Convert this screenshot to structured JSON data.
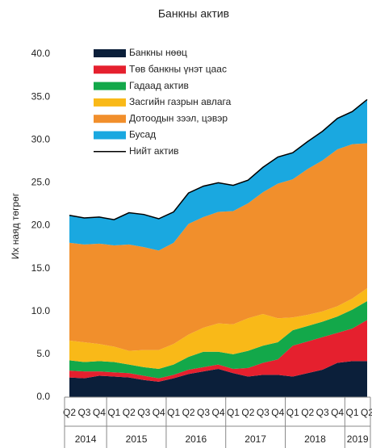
{
  "chart_data": {
    "type": "stacked_area",
    "title": "Банкны актив",
    "ylabel": "Их наяд төгрөг",
    "categories": [
      "Q2",
      "Q3",
      "Q4",
      "Q1",
      "Q2",
      "Q3",
      "Q4",
      "Q1",
      "Q2",
      "Q3",
      "Q4",
      "Q1",
      "Q2",
      "Q3",
      "Q4",
      "Q1",
      "Q2",
      "Q3",
      "Q4",
      "Q1",
      "Q2"
    ],
    "year_groups": [
      "2014",
      "2015",
      "2016",
      "2017",
      "2018",
      "2019"
    ],
    "ylim": [
      0,
      40
    ],
    "yticks": [
      {
        "value": 0,
        "label": "0.0"
      },
      {
        "value": 5,
        "label": "5.0"
      },
      {
        "value": 10,
        "label": "10.0"
      },
      {
        "value": 15,
        "label": "15.0"
      },
      {
        "value": 20,
        "label": "20.0"
      },
      {
        "value": 25,
        "label": "25.0"
      },
      {
        "value": 30,
        "label": "30.0"
      },
      {
        "value": 35,
        "label": "35.0"
      },
      {
        "value": 40,
        "label": "40.0"
      }
    ],
    "legend": "upper left",
    "series": [
      {
        "name": "Банкны нөөц",
        "color": "#0b1f3a",
        "values": [
          2.3,
          2.2,
          2.5,
          2.4,
          2.3,
          2.0,
          1.8,
          2.2,
          2.7,
          3.0,
          3.3,
          2.8,
          2.4,
          2.6,
          2.6,
          2.4,
          2.8,
          3.2,
          4.0,
          4.2,
          4.2
        ]
      },
      {
        "name": "Төв банкны үнэт цаас",
        "color": "#e5202e",
        "values": [
          0.8,
          0.8,
          0.5,
          0.5,
          0.5,
          0.5,
          0.4,
          0.4,
          0.5,
          0.5,
          0.5,
          0.5,
          1.0,
          1.4,
          1.8,
          3.6,
          3.7,
          3.8,
          3.5,
          3.8,
          4.8
        ]
      },
      {
        "name": "Гадаад актив",
        "color": "#13a84a",
        "values": [
          1.2,
          1.1,
          1.2,
          1.2,
          1.0,
          1.0,
          1.1,
          1.2,
          1.5,
          1.8,
          1.5,
          1.7,
          2.0,
          2.0,
          2.0,
          1.8,
          1.8,
          1.8,
          1.9,
          2.2,
          2.2
        ]
      },
      {
        "name": "Засгийн газрын авлага",
        "color": "#f9b918",
        "values": [
          2.3,
          2.3,
          2.0,
          1.8,
          1.6,
          2.0,
          2.2,
          2.4,
          2.6,
          2.8,
          3.3,
          3.5,
          3.8,
          3.7,
          2.8,
          1.5,
          1.3,
          1.2,
          1.2,
          1.3,
          1.5
        ]
      },
      {
        "name": "Дотоодын зээл, цэвэр",
        "color": "#f18f2c",
        "values": [
          11.4,
          11.4,
          11.7,
          11.8,
          12.4,
          12.0,
          11.6,
          11.8,
          12.9,
          12.9,
          13.0,
          13.2,
          13.4,
          14.2,
          15.7,
          16.1,
          17.0,
          17.6,
          18.3,
          18.0,
          16.9
        ]
      },
      {
        "name": "Бусад",
        "color": "#1aa8e0",
        "values": [
          3.2,
          3.1,
          3.1,
          3.0,
          3.7,
          3.8,
          3.7,
          3.6,
          3.6,
          3.6,
          3.4,
          3.0,
          2.7,
          2.9,
          3.1,
          3.1,
          3.2,
          3.4,
          3.6,
          3.8,
          5.1
        ]
      }
    ],
    "total": {
      "name": "Нийт актив",
      "color": "#000000",
      "values": [
        21.2,
        20.9,
        21.0,
        20.7,
        21.5,
        21.3,
        20.8,
        21.6,
        23.8,
        24.6,
        25.0,
        24.7,
        25.3,
        26.8,
        28.0,
        28.5,
        29.8,
        31.0,
        32.5,
        33.3,
        34.7
      ]
    }
  }
}
